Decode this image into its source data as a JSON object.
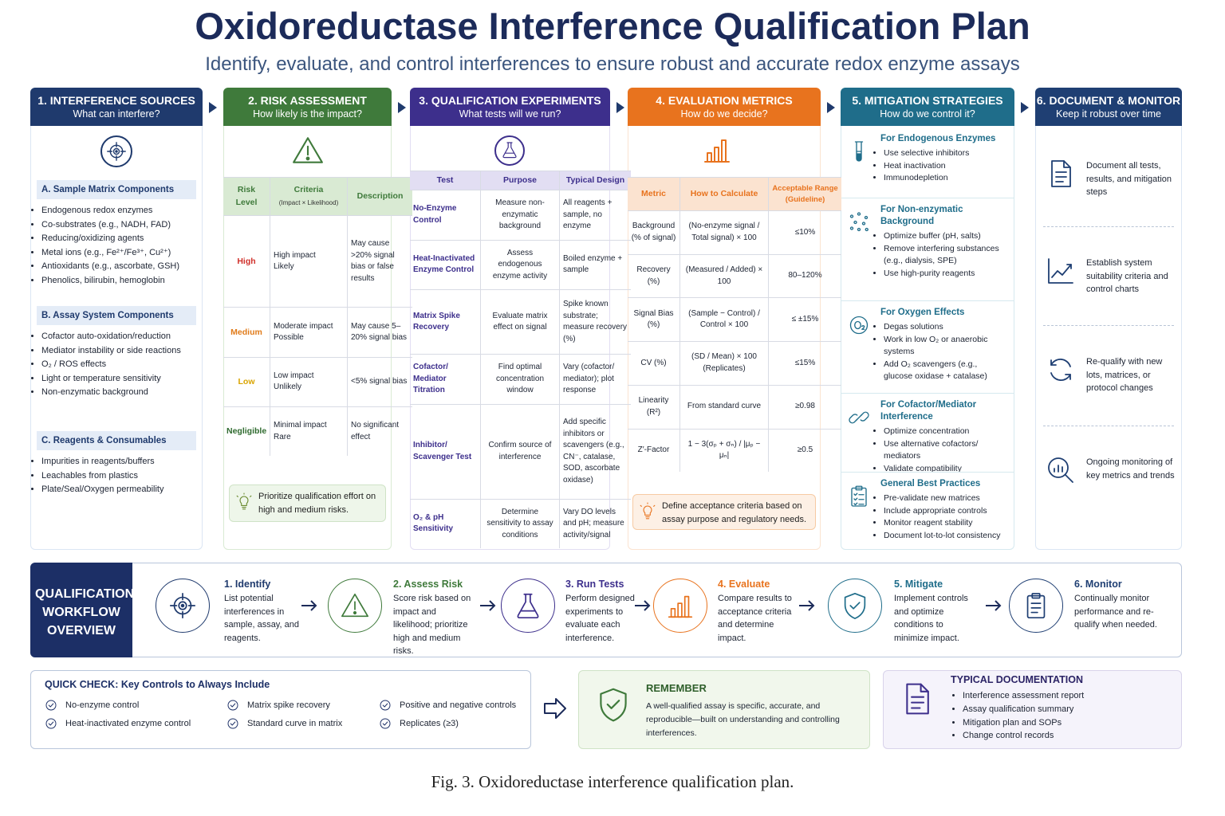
{
  "header": {
    "title": "Oxidoreductase Interference Qualification Plan",
    "subtitle": "Identify, evaluate, and control interferences to ensure robust and accurate redox enzyme assays"
  },
  "columns": [
    {
      "title": "1. INTERFERENCE SOURCES",
      "subtitle": "What can interfere?",
      "sections": [
        {
          "heading": "A. Sample Matrix Components",
          "items": [
            "Endogenous redox enzymes",
            "Co-substrates (e.g., NADH, FAD)",
            "Reducing/oxidizing agents",
            "Metal ions (e.g., Fe²⁺/Fe³⁺, Cu²⁺)",
            "Antioxidants (e.g., ascorbate, GSH)",
            "Phenolics, bilirubin, hemoglobin"
          ]
        },
        {
          "heading": "B. Assay System Components",
          "items": [
            "Cofactor auto-oxidation/reduction",
            "Mediator instability or side reactions",
            "O₂ / ROS effects",
            "Light or temperature sensitivity",
            "Non-enzymatic background"
          ]
        },
        {
          "heading": "C. Reagents & Consumables",
          "items": [
            "Impurities in reagents/buffers",
            "Leachables from plastics",
            "Plate/Seal/Oxygen permeability"
          ]
        }
      ]
    },
    {
      "title": "2. RISK ASSESSMENT",
      "subtitle": "How likely is the impact?",
      "headers": [
        "Risk Level",
        "Criteria",
        "Description"
      ],
      "criteria_note": "(Impact × Likelihood)",
      "rows": [
        [
          "High",
          "High impact\nLikely",
          "May cause >20% signal bias or false results"
        ],
        [
          "Medium",
          "Moderate impact\nPossible",
          "May cause 5–20% signal bias"
        ],
        [
          "Low",
          "Low impact\nUnlikely",
          "<5% signal bias"
        ],
        [
          "Negligible",
          "Minimal impact\nRare",
          "No significant effect"
        ]
      ],
      "note": "Prioritize qualification effort on high and medium risks."
    },
    {
      "title": "3. QUALIFICATION EXPERIMENTS",
      "subtitle": "What tests will we run?",
      "headers": [
        "Test",
        "Purpose",
        "Typical Design"
      ],
      "rows": [
        [
          "No-Enzyme Control",
          "Measure non-enzymatic background",
          "All reagents + sample, no enzyme"
        ],
        [
          "Heat-Inactivated Enzyme Control",
          "Assess endogenous enzyme activity",
          "Boiled enzyme + sample"
        ],
        [
          "Matrix Spike Recovery",
          "Evaluate matrix effect on signal",
          "Spike known substrate; measure recovery (%)"
        ],
        [
          "Cofactor/ Mediator Titration",
          "Find optimal concentration window",
          "Vary (cofactor/ mediator); plot response"
        ],
        [
          "Inhibitor/ Scavenger Test",
          "Confirm source of interference",
          "Add specific inhibitors or scavengers (e.g., CN⁻, catalase, SOD, ascorbate oxidase)"
        ],
        [
          "O₂ & pH Sensitivity",
          "Determine sensitivity to assay conditions",
          "Vary DO levels and pH; measure activity/signal"
        ]
      ]
    },
    {
      "title": "4. EVALUATION METRICS",
      "subtitle": "How do we decide?",
      "headers": [
        "Metric",
        "How to Calculate",
        "Acceptable Range (Guideline)"
      ],
      "rows": [
        [
          "Background (% of signal)",
          "(No-enzyme signal / Total signal) × 100",
          "≤10%"
        ],
        [
          "Recovery (%)",
          "(Measured / Added) × 100",
          "80–120%"
        ],
        [
          "Signal Bias (%)",
          "(Sample − Control) / Control × 100",
          "≤ ±15%"
        ],
        [
          "CV (%)",
          "(SD / Mean) × 100 (Replicates)",
          "≤15%"
        ],
        [
          "Linearity (R²)",
          "From standard curve",
          "≥0.98"
        ],
        [
          "Z′-Factor",
          "1 − 3(σₚ + σₙ) / |μₚ − μₙ|",
          "≥0.5"
        ]
      ],
      "note": "Define acceptance criteria based on assay purpose and regulatory needs."
    },
    {
      "title": "5. MITIGATION STRATEGIES",
      "subtitle": "How do we control it?",
      "groups": [
        {
          "heading": "For Endogenous Enzymes",
          "items": [
            "Use selective inhibitors",
            "Heat inactivation",
            "Immunodepletion"
          ]
        },
        {
          "heading": "For Non-enzymatic Background",
          "items": [
            "Optimize buffer (pH, salts)",
            "Remove interfering substances (e.g., dialysis, SPE)",
            "Use high-purity reagents"
          ]
        },
        {
          "heading": "For Oxygen Effects",
          "items": [
            "Degas solutions",
            "Work in low O₂ or anaerobic systems",
            "Add O₂ scavengers (e.g., glucose oxidase + catalase)"
          ]
        },
        {
          "heading": "For Cofactor/Mediator Interference",
          "items": [
            "Optimize concentration",
            "Use alternative cofactors/ mediators",
            "Validate compatibility"
          ]
        },
        {
          "heading": "General Best Practices",
          "items": [
            "Pre-validate new matrices",
            "Include appropriate controls",
            "Monitor reagent stability",
            "Document lot-to-lot consistency"
          ]
        }
      ]
    },
    {
      "title": "6. DOCUMENT & MONITOR",
      "subtitle": "Keep it robust over time",
      "items": [
        "Document all tests, results, and mitigation steps",
        "Establish system suitability criteria and control charts",
        "Re-qualify with new lots, matrices, or protocol changes",
        "Ongoing monitoring of key metrics and trends"
      ]
    }
  ],
  "workflow": {
    "label": "QUALIFICATION WORKFLOW OVERVIEW",
    "steps": [
      {
        "title": "1. Identify",
        "text": "List potential interferences in sample, assay, and reagents."
      },
      {
        "title": "2. Assess Risk",
        "text": "Score risk based on impact and likelihood; prioritize high and medium risks."
      },
      {
        "title": "3. Run Tests",
        "text": "Perform designed experiments to evaluate each interference."
      },
      {
        "title": "4. Evaluate",
        "text": "Compare results to acceptance criteria and determine impact."
      },
      {
        "title": "5. Mitigate",
        "text": "Implement controls and optimize conditions to minimize impact."
      },
      {
        "title": "6. Monitor",
        "text": "Continually monitor performance and re-qualify when needed."
      }
    ]
  },
  "quick_check": {
    "title": "QUICK CHECK: Key Controls to Always Include",
    "items": [
      "No-enzyme control",
      "Matrix spike recovery",
      "Positive and negative controls",
      "Heat-inactivated enzyme control",
      "Standard curve in matrix",
      "Replicates (≥3)"
    ]
  },
  "remember": {
    "title": "REMEMBER",
    "text": "A well-qualified assay is specific, accurate, and reproducible—built on understanding and controlling interferences."
  },
  "typical_documentation": {
    "title": "TYPICAL DOCUMENTATION",
    "items": [
      "Interference assessment report",
      "Assay qualification summary",
      "Mitigation plan and SOPs",
      "Change control records"
    ]
  },
  "caption": "Fig. 3.  Oxidoreductase interference qualification plan."
}
